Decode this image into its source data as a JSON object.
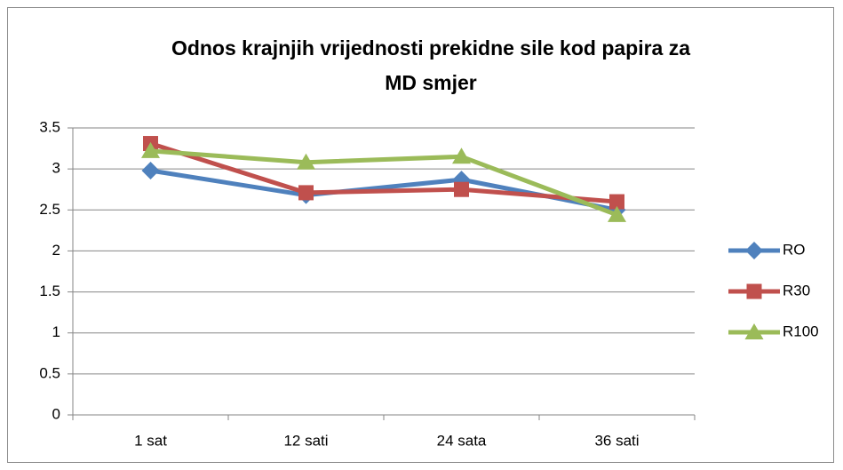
{
  "chart_data": {
    "type": "line",
    "title": [
      "Odnos krajnjih vrijednosti prekidne sile kod papira za",
      "MD smjer"
    ],
    "categories": [
      "1 sat",
      "12 sati",
      "24 sata",
      "36 sati"
    ],
    "series": [
      {
        "name": "RO",
        "color": "#4f81bd",
        "marker": "diamond",
        "values": [
          2.98,
          2.68,
          2.87,
          2.5
        ]
      },
      {
        "name": "R30",
        "color": "#c0504d",
        "marker": "square",
        "values": [
          3.31,
          2.71,
          2.75,
          2.6
        ]
      },
      {
        "name": "R100",
        "color": "#9bbb59",
        "marker": "triangle",
        "values": [
          3.22,
          3.08,
          3.15,
          2.44
        ]
      }
    ],
    "ylim": [
      0,
      3.5
    ],
    "yticks": [
      0,
      0.5,
      1,
      1.5,
      2,
      2.5,
      3,
      3.5
    ],
    "grid": true,
    "legend": "right"
  }
}
